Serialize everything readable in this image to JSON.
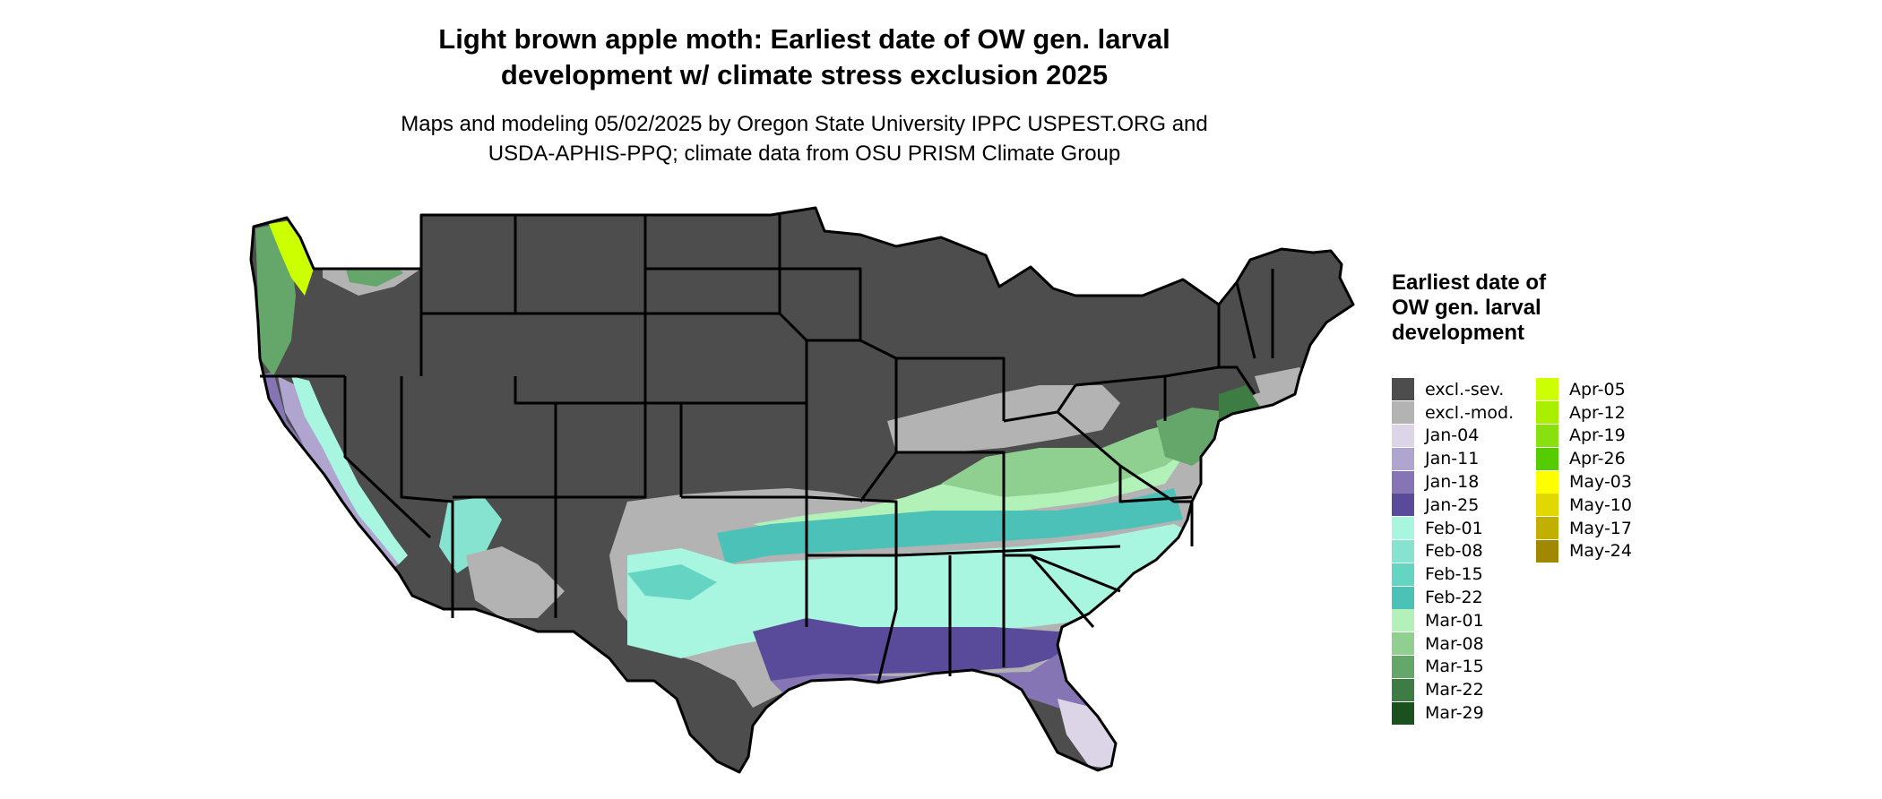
{
  "title_line1": "Light brown apple moth: Earliest date of OW gen. larval",
  "title_line2": "development w/ climate stress exclusion 2025",
  "subtitle_line1": "Maps and modeling 05/02/2025 by Oregon State University IPPC USPEST.ORG and",
  "subtitle_line2": "USDA-APHIS-PPQ; climate data from OSU PRISM Climate Group",
  "legend": {
    "title": "Earliest date of OW gen. larval development",
    "column1": [
      {
        "label": "excl.-sev.",
        "color": "#4d4d4d"
      },
      {
        "label": "excl.-mod.",
        "color": "#b3b3b3"
      },
      {
        "label": "Jan-04",
        "color": "#dcd5e8"
      },
      {
        "label": "Jan-11",
        "color": "#b0a5cf"
      },
      {
        "label": "Jan-18",
        "color": "#8575b4"
      },
      {
        "label": "Jan-25",
        "color": "#5a4a9a"
      },
      {
        "label": "Feb-01",
        "color": "#a8f5e0"
      },
      {
        "label": "Feb-08",
        "color": "#86e3cf"
      },
      {
        "label": "Feb-15",
        "color": "#66d4c2"
      },
      {
        "label": "Feb-22",
        "color": "#4cc1b8"
      },
      {
        "label": "Mar-01",
        "color": "#b2f2b8"
      },
      {
        "label": "Mar-08",
        "color": "#8fd090"
      },
      {
        "label": "Mar-15",
        "color": "#65a66a"
      },
      {
        "label": "Mar-22",
        "color": "#3d7d44"
      },
      {
        "label": "Mar-29",
        "color": "#1b501f"
      }
    ],
    "column2": [
      {
        "label": "Apr-05",
        "color": "#ccff00"
      },
      {
        "label": "Apr-12",
        "color": "#a8f000"
      },
      {
        "label": "Apr-19",
        "color": "#88e010"
      },
      {
        "label": "Apr-26",
        "color": "#55cc00"
      },
      {
        "label": "May-03",
        "color": "#ffff00"
      },
      {
        "label": "May-10",
        "color": "#e0d800"
      },
      {
        "label": "May-17",
        "color": "#c2b000"
      },
      {
        "label": "May-24",
        "color": "#a08800"
      }
    ]
  }
}
